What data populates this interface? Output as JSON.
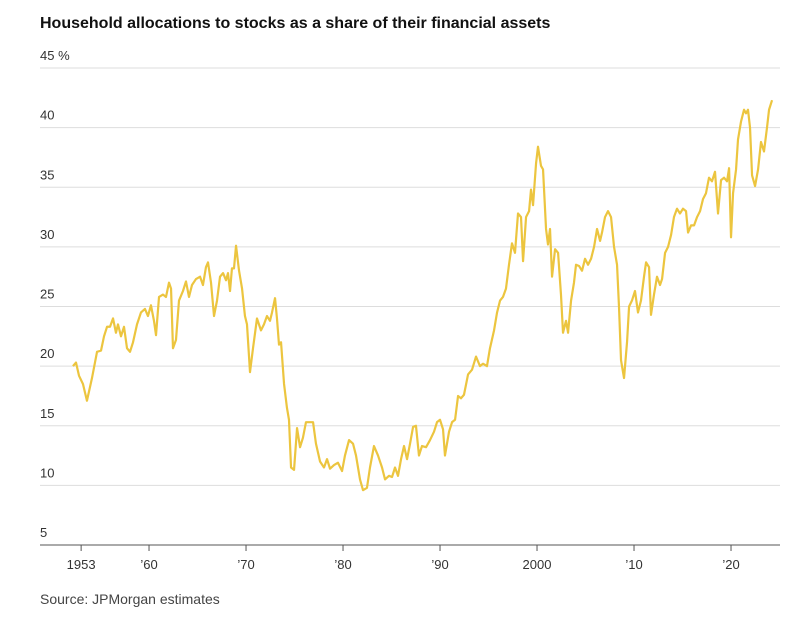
{
  "chart_data": {
    "type": "line",
    "title": "Household allocations to stocks as a share of their financial assets",
    "source": "Source: JPMorgan estimates",
    "xlim": [
      1948.76,
      2025.05
    ],
    "xticks": [
      {
        "value": 1953,
        "label": "1953"
      },
      {
        "value": 1960,
        "label": "’60"
      },
      {
        "value": 1970,
        "label": "’70"
      },
      {
        "value": 1980,
        "label": "’80"
      },
      {
        "value": 1990,
        "label": "’90"
      },
      {
        "value": 2000,
        "label": "2000"
      },
      {
        "value": 2010,
        "label": "’10"
      },
      {
        "value": 2020,
        "label": "’20"
      }
    ],
    "ylim": [
      5,
      45
    ],
    "yticks": [
      5,
      10,
      15,
      20,
      25,
      30,
      35,
      40,
      {
        "value": 45,
        "label": "45 %"
      }
    ],
    "grid": true,
    "series": [
      {
        "color": "#ecc53f",
        "x": [
          1952.16,
          1952.47,
          1952.78,
          1953.19,
          1953.6,
          1954.12,
          1954.64,
          1955.05,
          1955.36,
          1955.67,
          1955.98,
          1956.29,
          1956.59,
          1956.8,
          1957.11,
          1957.42,
          1957.73,
          1958.04,
          1958.35,
          1958.76,
          1959.17,
          1959.58,
          1959.89,
          1960.2,
          1960.51,
          1960.72,
          1961.03,
          1961.44,
          1961.75,
          1962.06,
          1962.27,
          1962.47,
          1962.78,
          1963.09,
          1963.5,
          1963.81,
          1964.12,
          1964.43,
          1964.84,
          1965.26,
          1965.56,
          1965.87,
          1966.08,
          1966.39,
          1966.7,
          1967.01,
          1967.32,
          1967.63,
          1967.94,
          1968.14,
          1968.35,
          1968.55,
          1968.76,
          1968.97,
          1969.28,
          1969.59,
          1969.89,
          1970.1,
          1970.41,
          1970.72,
          1971.13,
          1971.54,
          1971.85,
          1972.16,
          1972.47,
          1972.68,
          1972.99,
          1973.19,
          1973.4,
          1973.61,
          1973.92,
          1974.22,
          1974.43,
          1974.64,
          1974.95,
          1975.26,
          1975.57,
          1975.87,
          1976.18,
          1976.49,
          1976.91,
          1977.21,
          1977.63,
          1978.04,
          1978.35,
          1978.66,
          1979.07,
          1979.48,
          1979.9,
          1980.2,
          1980.62,
          1981.03,
          1981.34,
          1981.75,
          1982.06,
          1982.47,
          1982.78,
          1983.19,
          1983.61,
          1984.02,
          1984.33,
          1984.74,
          1985.05,
          1985.36,
          1985.67,
          1985.98,
          1986.29,
          1986.6,
          1986.91,
          1987.22,
          1987.52,
          1987.83,
          1988.14,
          1988.56,
          1988.97,
          1989.38,
          1989.69,
          1990.0,
          1990.31,
          1990.51,
          1990.93,
          1991.24,
          1991.55,
          1991.86,
          1992.16,
          1992.47,
          1992.89,
          1993.3,
          1993.71,
          1994.12,
          1994.43,
          1994.84,
          1995.15,
          1995.57,
          1995.88,
          1996.19,
          1996.49,
          1996.8,
          1997.11,
          1997.42,
          1997.73,
          1998.04,
          1998.35,
          1998.56,
          1998.87,
          1999.18,
          1999.38,
          1999.59,
          1999.9,
          2000.1,
          2000.41,
          2000.62,
          2000.93,
          2001.13,
          2001.34,
          2001.55,
          2001.86,
          2002.17,
          2002.47,
          2002.68,
          2002.99,
          2003.2,
          2003.51,
          2003.81,
          2004.02,
          2004.33,
          2004.64,
          2004.95,
          2005.26,
          2005.57,
          2005.88,
          2006.19,
          2006.5,
          2006.7,
          2007.01,
          2007.32,
          2007.63,
          2007.94,
          2008.25,
          2008.45,
          2008.66,
          2008.97,
          2009.28,
          2009.49,
          2009.79,
          2010.1,
          2010.41,
          2010.72,
          2011.03,
          2011.24,
          2011.55,
          2011.75,
          2012.06,
          2012.37,
          2012.68,
          2012.89,
          2013.2,
          2013.51,
          2013.82,
          2014.12,
          2014.43,
          2014.74,
          2015.05,
          2015.36,
          2015.57,
          2015.88,
          2016.19,
          2016.5,
          2016.81,
          2017.11,
          2017.42,
          2017.73,
          2018.04,
          2018.35,
          2018.66,
          2018.97,
          2019.28,
          2019.59,
          2019.8,
          2020.0,
          2020.21,
          2020.52,
          2020.72,
          2021.03,
          2021.34,
          2021.55,
          2021.75,
          2021.96,
          2022.17,
          2022.48,
          2022.79,
          2023.09,
          2023.4,
          2023.71,
          2023.92,
          2024.23
        ],
        "values": [
          20.0,
          20.3,
          19.2,
          18.5,
          17.1,
          19,
          21.2,
          21.3,
          22.5,
          23.3,
          23.3,
          24,
          22.8,
          23.5,
          22.5,
          23.3,
          21.5,
          21.2,
          22,
          23.5,
          24.5,
          24.8,
          24.2,
          25.1,
          23.8,
          22.6,
          25.8,
          26.0,
          25.8,
          27,
          26.5,
          21.5,
          22.2,
          25.5,
          26.3,
          27.1,
          25.8,
          26.8,
          27.3,
          27.5,
          26.8,
          28.3,
          28.7,
          27,
          24.2,
          25.5,
          27.5,
          27.8,
          27.2,
          27.8,
          26.3,
          28.2,
          28.2,
          30.1,
          28,
          26.5,
          24.2,
          23.5,
          19.5,
          21.5,
          24,
          23,
          23.5,
          24.2,
          23.8,
          24.5,
          25.7,
          24,
          21.8,
          22,
          18.5,
          16.5,
          15.5,
          11.5,
          11.3,
          14.8,
          13.2,
          14,
          15.3,
          15.3,
          15.3,
          13.5,
          12,
          11.5,
          12.2,
          11.4,
          11.7,
          11.9,
          11.2,
          12.5,
          13.8,
          13.5,
          12.5,
          10.5,
          9.6,
          9.8,
          11.5,
          13.3,
          12.5,
          11.5,
          10.5,
          10.8,
          10.7,
          11.5,
          10.8,
          12.2,
          13.3,
          12.2,
          13.5,
          14.9,
          15,
          12.5,
          13.3,
          13.2,
          13.8,
          14.5,
          15.3,
          15.5,
          14.7,
          12.5,
          14.5,
          15.3,
          15.5,
          17.5,
          17.3,
          17.6,
          19.3,
          19.7,
          20.8,
          20,
          20.2,
          20,
          21.5,
          23,
          24.5,
          25.5,
          25.8,
          26.5,
          28.5,
          30.3,
          29.5,
          32.8,
          32.5,
          28.8,
          32.5,
          33,
          34.8,
          33.5,
          37,
          38.4,
          36.8,
          36.5,
          31.5,
          30.2,
          31.5,
          27.5,
          29.8,
          29.5,
          26,
          22.8,
          23.8,
          22.8,
          25.5,
          27,
          28.5,
          28.4,
          28,
          29,
          28.5,
          29,
          30,
          31.5,
          30.5,
          31.2,
          32.5,
          33,
          32.5,
          30,
          28.5,
          25,
          20.5,
          19,
          22,
          25,
          25.5,
          26.3,
          24.5,
          25.5,
          27.5,
          28.7,
          28.3,
          24.3,
          26,
          27.5,
          26.8,
          27.3,
          29.5,
          30,
          31,
          32.5,
          33.2,
          32.8,
          33.2,
          33,
          31.2,
          31.8,
          31.8,
          32.5,
          33,
          34,
          34.5,
          35.8,
          35.5,
          36.3,
          32.8,
          35.6,
          35.8,
          35.5,
          36.6,
          30.8,
          34.5,
          36.5,
          39,
          40.5,
          41.5,
          41.2,
          41.5,
          40,
          36,
          35.1,
          36.5,
          38.8,
          38,
          40,
          41.5,
          42.3
        ]
      }
    ]
  }
}
